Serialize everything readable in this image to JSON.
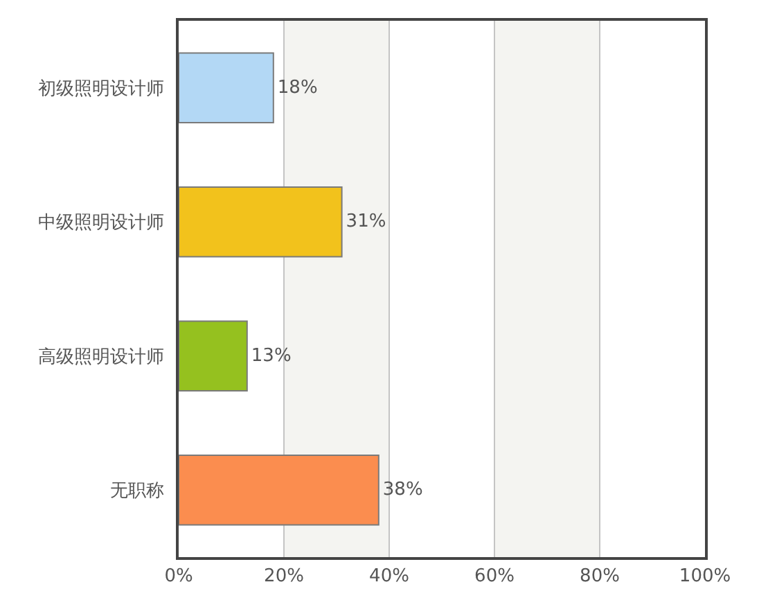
{
  "chart_data": {
    "type": "bar",
    "orientation": "horizontal",
    "categories": [
      "初级照明设计师",
      "中级照明设计师",
      "高级照明设计师",
      "无职称"
    ],
    "values": [
      18,
      31,
      13,
      38
    ],
    "colors": [
      "#b3d8f5",
      "#f2c21c",
      "#95c11f",
      "#fb8d4f"
    ],
    "value_labels": [
      "18%",
      "31%",
      "13%",
      "38%"
    ],
    "xlim": [
      0,
      100
    ],
    "xticks": [
      {
        "value": 0,
        "label": "0%"
      },
      {
        "value": 20,
        "label": "20%"
      },
      {
        "value": 40,
        "label": "40%"
      },
      {
        "value": 60,
        "label": "60%"
      },
      {
        "value": 80,
        "label": "80%"
      },
      {
        "value": 100,
        "label": "100%"
      }
    ],
    "bands": [
      {
        "axis": "x",
        "from": 20,
        "to": 40,
        "color": "#f4f4f1"
      },
      {
        "axis": "x",
        "from": 60,
        "to": 80,
        "color": "#f4f4f1"
      }
    ],
    "grid": "x"
  }
}
